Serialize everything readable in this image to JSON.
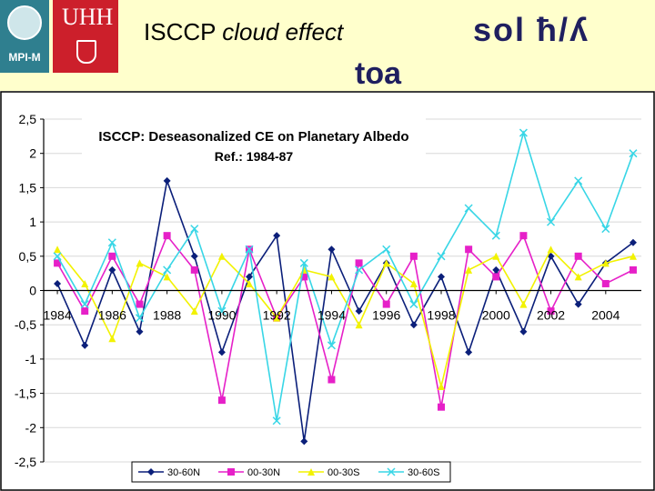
{
  "header": {
    "logo_left": "MPI-M",
    "logo_right": "UHH",
    "title_plain": "ISCCP ",
    "title_italic": "cloud effect",
    "title_sub": "toa",
    "title_symbol": "sol ħ/ʎ"
  },
  "colors": {
    "s30_60N": "#0b1f7a",
    "s00_30N": "#e620c8",
    "s00_30S": "#f2f200",
    "s30_60S": "#38d6e6",
    "banner": "#ffffcc"
  },
  "chart_data": {
    "type": "line",
    "title": "ISCCP: Deseasonalized CE on Planetary Albedo",
    "subtitle": "Ref.: 1984-87",
    "ylim": [
      -2.5,
      2.5
    ],
    "yticks": [
      "2,5",
      "2",
      "1,5",
      "1",
      "0,5",
      "0",
      "-0,5",
      "-1",
      "-1,5",
      "-2",
      "-2,5"
    ],
    "yticks_values": [
      2.5,
      2,
      1.5,
      1,
      0.5,
      0,
      -0.5,
      -1,
      -1.5,
      -2,
      -2.5
    ],
    "xlim": [
      1983.5,
      2005.3
    ],
    "xticks": [
      "1984",
      "1986",
      "1988",
      "1990",
      "1992",
      "1994",
      "1996",
      "1998",
      "2000",
      "2002",
      "2004"
    ],
    "xticks_values": [
      1984,
      1986,
      1988,
      1990,
      1992,
      1994,
      1996,
      1998,
      2000,
      2002,
      2004
    ],
    "legend_position": "bottom",
    "series": [
      {
        "name": "30-60N",
        "x": [
          1984,
          1985,
          1986,
          1987,
          1988,
          1989,
          1990,
          1991,
          1992,
          1993,
          1994,
          1995,
          1996,
          1997,
          1998,
          1999,
          2000,
          2001,
          2002,
          2003,
          2004,
          2005
        ],
        "values": [
          0.1,
          -0.8,
          0.3,
          -0.6,
          1.6,
          0.5,
          -0.9,
          0.2,
          0.8,
          -2.2,
          0.6,
          -0.3,
          0.4,
          -0.5,
          0.2,
          -0.9,
          0.3,
          -0.6,
          0.5,
          -0.2,
          0.4,
          0.7
        ]
      },
      {
        "name": "00-30N",
        "x": [
          1984,
          1985,
          1986,
          1987,
          1988,
          1989,
          1990,
          1991,
          1992,
          1993,
          1994,
          1995,
          1996,
          1997,
          1998,
          1999,
          2000,
          2001,
          2002,
          2003,
          2004,
          2005
        ],
        "values": [
          0.4,
          -0.3,
          0.5,
          -0.2,
          0.8,
          0.3,
          -1.6,
          0.6,
          -0.4,
          0.2,
          -1.3,
          0.4,
          -0.2,
          0.5,
          -1.7,
          0.6,
          0.2,
          0.8,
          -0.3,
          0.5,
          0.1,
          0.3
        ]
      },
      {
        "name": "00-30S",
        "x": [
          1984,
          1985,
          1986,
          1987,
          1988,
          1989,
          1990,
          1991,
          1992,
          1993,
          1994,
          1995,
          1996,
          1997,
          1998,
          1999,
          2000,
          2001,
          2002,
          2003,
          2004,
          2005
        ],
        "values": [
          0.6,
          0.1,
          -0.7,
          0.4,
          0.2,
          -0.3,
          0.5,
          0.1,
          -0.4,
          0.3,
          0.2,
          -0.5,
          0.4,
          0.1,
          -1.4,
          0.3,
          0.5,
          -0.2,
          0.6,
          0.2,
          0.4,
          0.5
        ]
      },
      {
        "name": "30-60S",
        "x": [
          1984,
          1985,
          1986,
          1987,
          1988,
          1989,
          1990,
          1991,
          1992,
          1993,
          1994,
          1995,
          1996,
          1997,
          1998,
          1999,
          2000,
          2001,
          2002,
          2003,
          2004,
          2005
        ],
        "values": [
          0.5,
          -0.2,
          0.7,
          -0.4,
          0.3,
          0.9,
          -0.3,
          0.6,
          -1.9,
          0.4,
          -0.8,
          0.3,
          0.6,
          -0.2,
          0.5,
          1.2,
          0.8,
          2.3,
          1.0,
          1.6,
          0.9,
          2.0
        ]
      }
    ]
  }
}
